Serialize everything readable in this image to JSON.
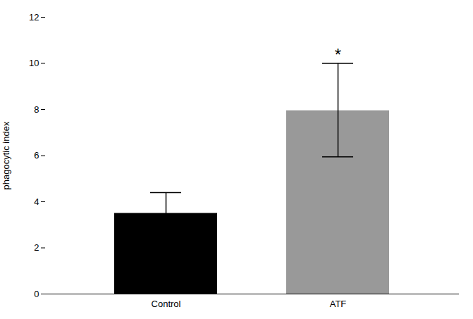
{
  "chart_data": {
    "type": "bar",
    "categories": [
      "Control",
      "ATF"
    ],
    "values": [
      3.5,
      7.95
    ],
    "errors_upper": [
      0.9,
      2.05
    ],
    "errors_lower": [
      0.9,
      2.0
    ],
    "colors": [
      "#000000",
      "#999999"
    ],
    "ylabel": "phagocytic index",
    "ylim": [
      0,
      12
    ],
    "yticks": [
      0,
      2,
      4,
      6,
      8,
      10,
      12
    ],
    "grid": false,
    "annotations": [
      {
        "text": "*",
        "x": "ATF"
      }
    ]
  }
}
